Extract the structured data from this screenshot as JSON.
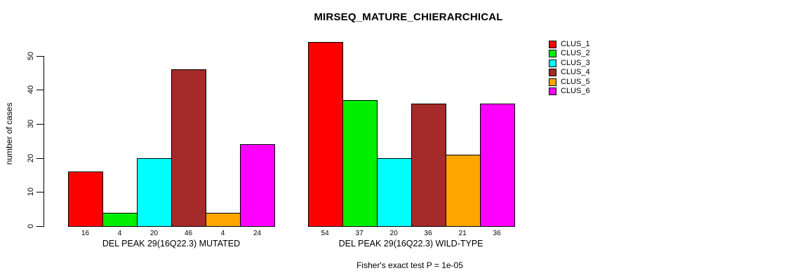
{
  "chart_data": {
    "type": "bar",
    "title": "MIRSEQ_MATURE_CHIERARCHICAL",
    "ylabel": "number of cases",
    "xlabel": "",
    "ylim": [
      0,
      50
    ],
    "yticks": [
      0,
      10,
      20,
      30,
      40,
      50
    ],
    "grid": false,
    "legend_position": "right",
    "categories": [
      "CLUS_1",
      "CLUS_2",
      "CLUS_3",
      "CLUS_4",
      "CLUS_5",
      "CLUS_6"
    ],
    "groups": [
      {
        "label": "DEL PEAK 29(16Q22.3) MUTATED",
        "values": [
          16,
          4,
          20,
          46,
          4,
          24
        ]
      },
      {
        "label": "DEL PEAK 29(16Q22.3) WILD-TYPE",
        "values": [
          54,
          37,
          20,
          36,
          21,
          36
        ]
      }
    ],
    "legend": [
      {
        "label": "CLUS_1",
        "color": "#FF0000"
      },
      {
        "label": "CLUS_2",
        "color": "#00EE00"
      },
      {
        "label": "CLUS_3",
        "color": "#00FFFF"
      },
      {
        "label": "CLUS_4",
        "color": "#A52A2A"
      },
      {
        "label": "CLUS_5",
        "color": "#FFA500"
      },
      {
        "label": "CLUS_6",
        "color": "#FF00FF"
      }
    ],
    "annotation": "Fisher's exact test P = 1e-05"
  }
}
